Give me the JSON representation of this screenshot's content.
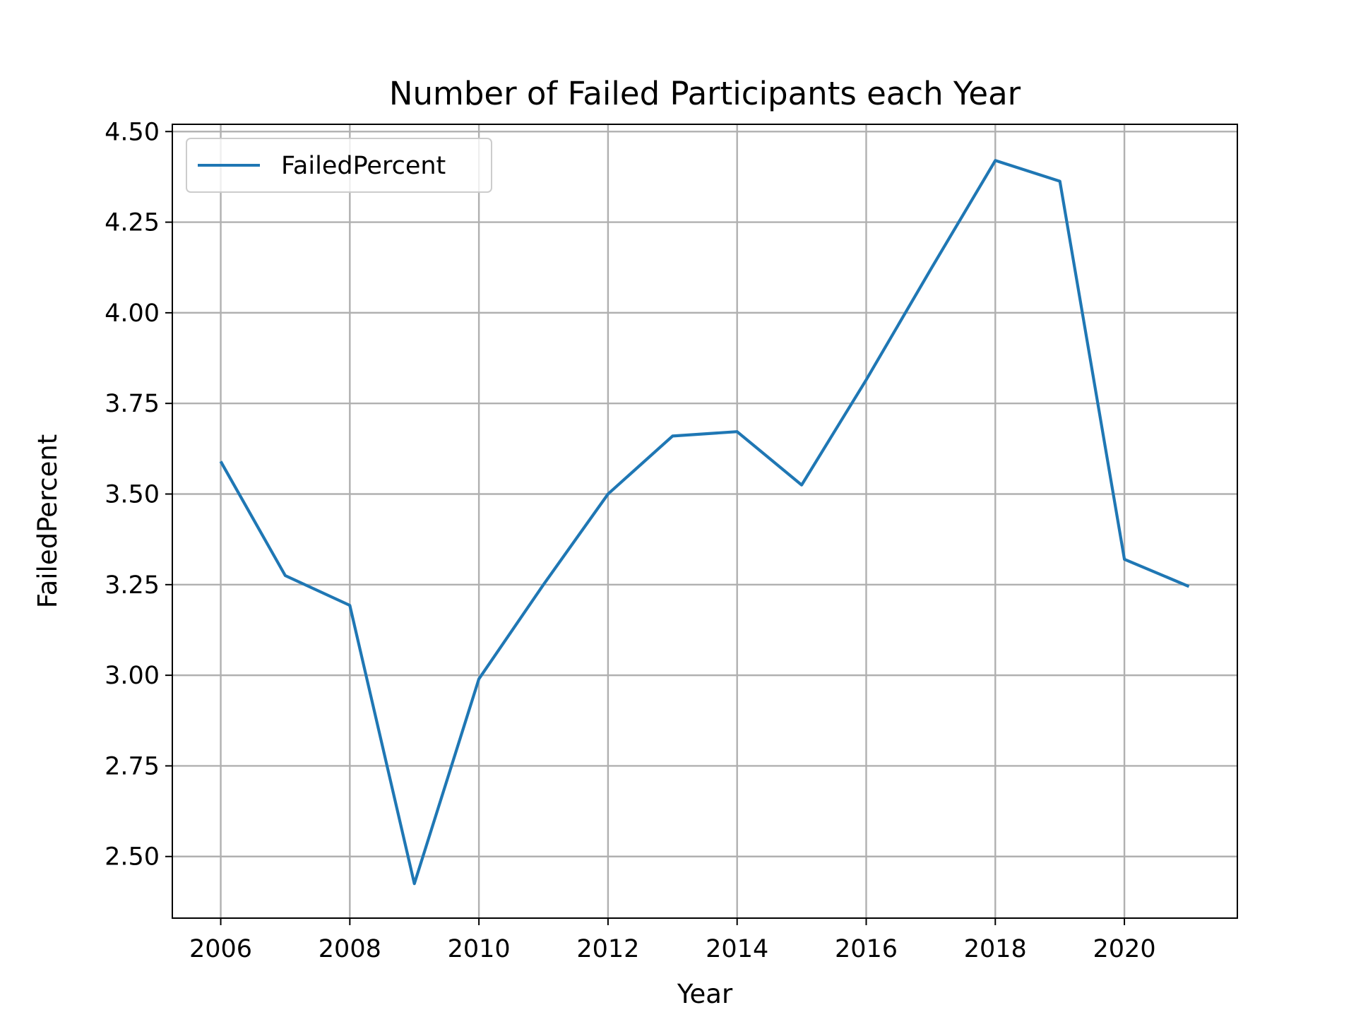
{
  "chart_data": {
    "type": "line",
    "title": "Number of Failed Participants each Year",
    "xlabel": "Year",
    "ylabel": "FailedPercent",
    "xlim": [
      2005.25,
      2021.75
    ],
    "ylim": [
      2.33,
      4.52
    ],
    "x_ticks": [
      2006,
      2008,
      2010,
      2012,
      2014,
      2016,
      2018,
      2020
    ],
    "y_ticks": [
      2.5,
      2.75,
      3.0,
      3.25,
      3.5,
      3.75,
      4.0,
      4.25,
      4.5
    ],
    "grid": true,
    "legend": "upper-left",
    "series": [
      {
        "name": "FailedPercent",
        "color": "#1f77b4",
        "x": [
          2006,
          2007,
          2008,
          2009,
          2010,
          2011,
          2012,
          2013,
          2014,
          2015,
          2016,
          2017,
          2018,
          2019,
          2020,
          2021
        ],
        "y": [
          3.59,
          3.275,
          3.193,
          2.425,
          2.99,
          3.25,
          3.5,
          3.66,
          3.672,
          3.525,
          3.815,
          4.12,
          4.42,
          4.363,
          3.32,
          3.245
        ]
      }
    ]
  }
}
